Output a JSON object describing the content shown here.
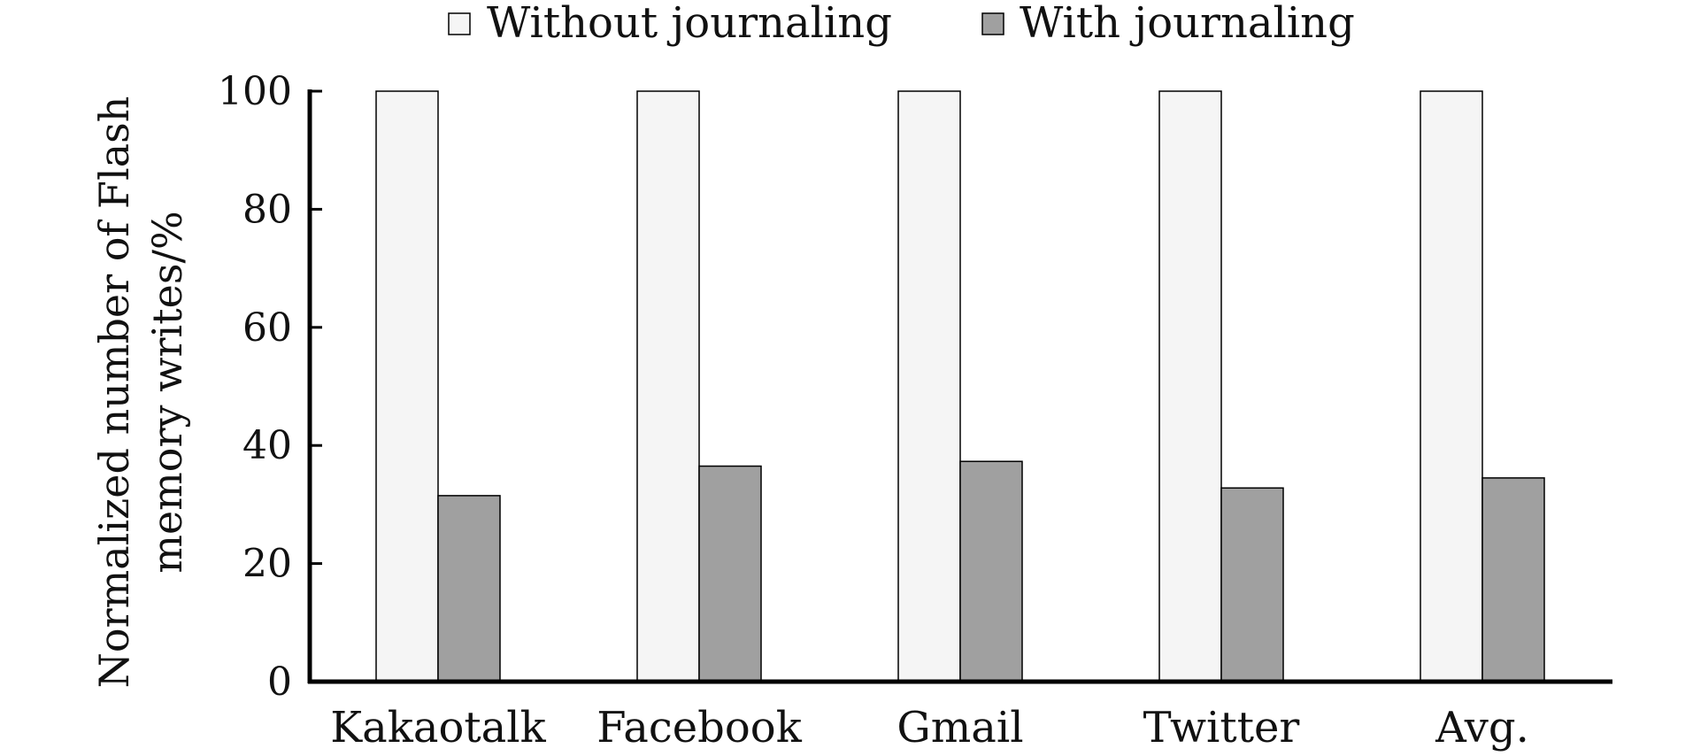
{
  "chart_data": {
    "type": "bar",
    "title": "",
    "xlabel": "",
    "ylabel": "Normalized number of Flash memory writes/%",
    "ylabel_lines": [
      "Normalized number of Flash",
      "memory writes/%"
    ],
    "categories": [
      "Kakaotalk",
      "Facebook",
      "Gmail",
      "Twitter",
      "Avg."
    ],
    "series": [
      {
        "name": "Without journaling",
        "values": [
          100,
          100,
          100,
          100,
          100
        ],
        "color": "#f5f5f5"
      },
      {
        "name": "With journaling",
        "values": [
          31.5,
          36.5,
          37.3,
          32.8,
          34.5
        ],
        "color": "#a0a0a0"
      }
    ],
    "ylim": [
      0,
      100
    ],
    "yticks": [
      "0",
      "20",
      "40",
      "60",
      "80",
      "100"
    ],
    "ytick_values": [
      0,
      20,
      40,
      60,
      80,
      100
    ],
    "grid": false,
    "legend_position": "top-center",
    "colors": {
      "axis": "#000000",
      "bar_stroke": "#000000"
    }
  }
}
